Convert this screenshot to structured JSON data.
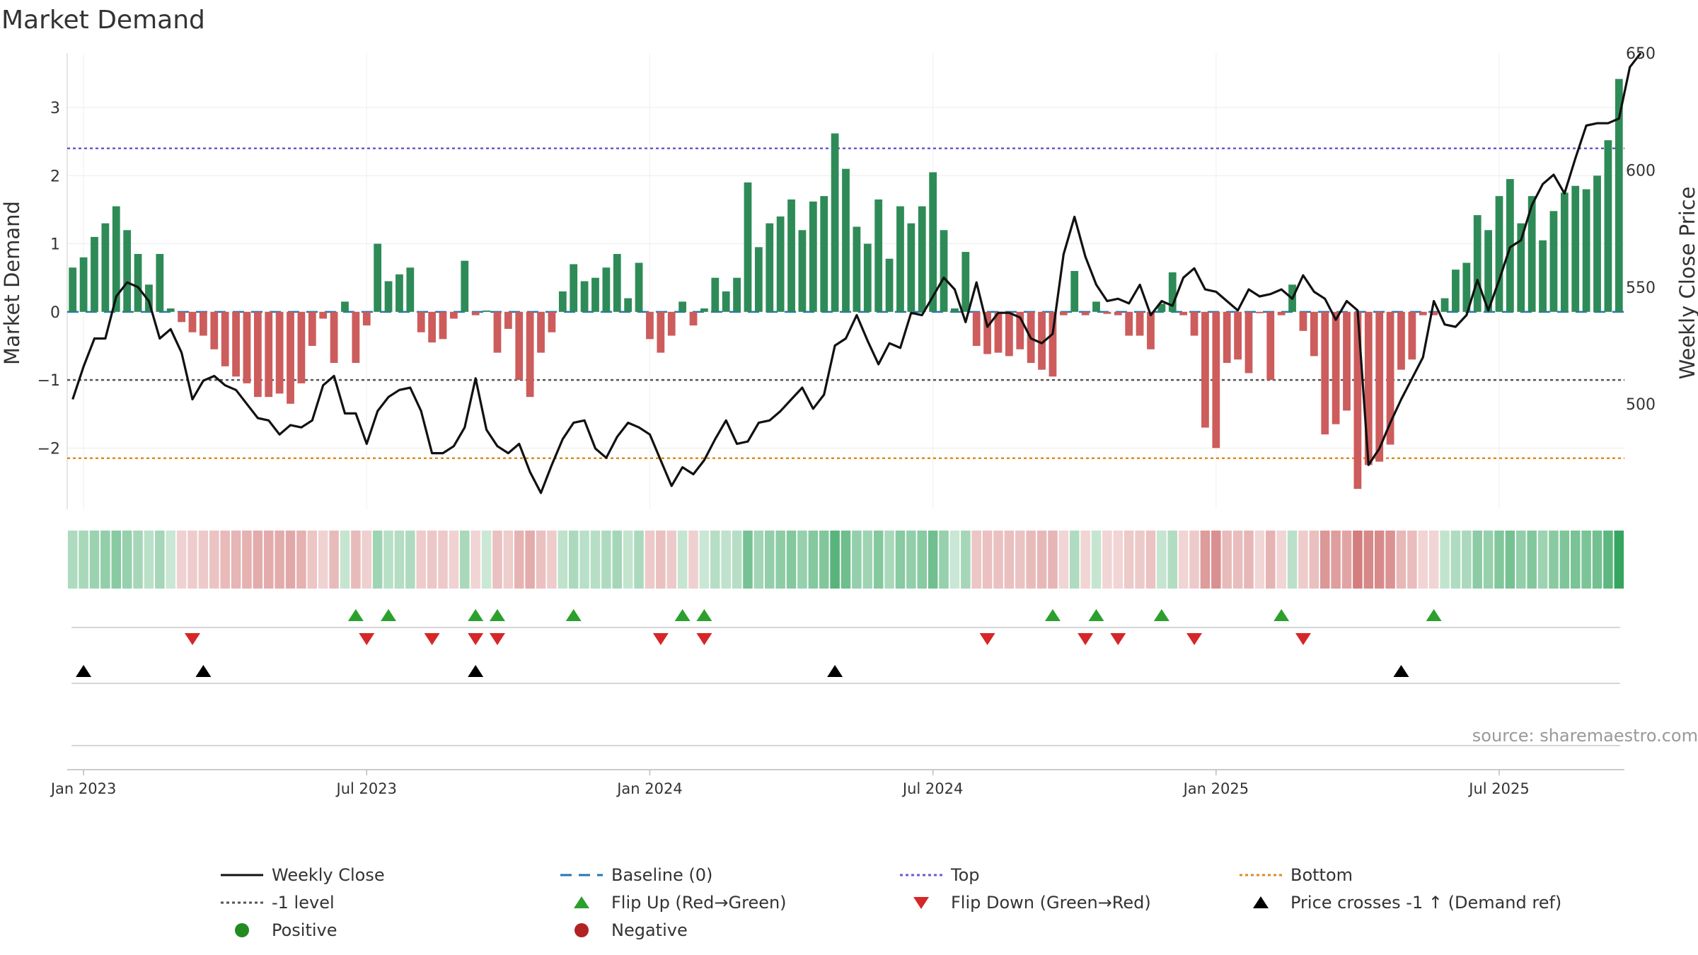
{
  "title": "Market Demand",
  "source": "source: sharemaestro.com",
  "colors": {
    "positive": "#2e8b57",
    "negative": "#cd5c5c",
    "price": "#111111",
    "baseline": "#1f77b4",
    "top": "#6a5acd",
    "bottom": "#e08a1e",
    "level": "#555555",
    "flip_up": "#2ca02c",
    "flip_down": "#d62728",
    "cross": "#000000",
    "legend_positive": "#228b22",
    "legend_negative": "#b22222",
    "heat_pos": "#2ea15a",
    "heat_neg": "#c85a5a"
  },
  "chart_data": {
    "type": "bar",
    "title": "Market Demand",
    "ylabel": "Market Demand",
    "y2label": "Weekly Close Price",
    "ylim": [
      -2.9,
      3.8
    ],
    "y2lim": [
      455,
      650
    ],
    "yticks": [
      "-2",
      "-1",
      "0",
      "1",
      "2",
      "3"
    ],
    "y2ticks": [
      "500",
      "550",
      "600",
      "650"
    ],
    "date_labels": [
      "Jan 2023",
      "Jul 2023",
      "Jan 2024",
      "Jul 2024",
      "Jan 2025",
      "Jul 2025"
    ],
    "date_label_weeks": [
      1,
      27,
      53,
      79,
      105,
      131
    ],
    "reference_lines": {
      "baseline": 0,
      "top": 2.4,
      "bottom": -2.15,
      "minus_one_level": -1
    },
    "series": [
      {
        "name": "Market Demand",
        "values": [
          0.65,
          0.8,
          1.1,
          1.3,
          1.55,
          1.2,
          0.85,
          0.4,
          0.85,
          0.05,
          -0.15,
          -0.3,
          -0.35,
          -0.55,
          -0.8,
          -0.95,
          -1.05,
          -1.25,
          -1.25,
          -1.2,
          -1.35,
          -1.05,
          -0.5,
          -0.1,
          -0.75,
          0.15,
          -0.75,
          -0.2,
          1.0,
          0.45,
          0.55,
          0.65,
          -0.3,
          -0.45,
          -0.4,
          -0.1,
          0.75,
          -0.05,
          0.02,
          -0.6,
          -0.25,
          -1.0,
          -1.25,
          -0.6,
          -0.3,
          0.3,
          0.7,
          0.45,
          0.5,
          0.65,
          0.85,
          0.2,
          0.72,
          -0.4,
          -0.6,
          -0.35,
          0.15,
          -0.2,
          0.05,
          0.5,
          0.3,
          0.5,
          1.9,
          0.95,
          1.3,
          1.4,
          1.65,
          1.2,
          1.62,
          1.7,
          2.62,
          2.1,
          1.25,
          1.0,
          1.65,
          0.78,
          1.55,
          1.3,
          1.55,
          2.05,
          1.2,
          0.05,
          0.88,
          -0.5,
          -0.62,
          -0.6,
          -0.65,
          -0.55,
          -0.75,
          -0.85,
          -0.95,
          -0.05,
          0.6,
          -0.05,
          0.15,
          -0.03,
          -0.05,
          -0.35,
          -0.35,
          -0.55,
          0.12,
          0.58,
          -0.05,
          -0.35,
          -1.7,
          -2.0,
          -0.75,
          -0.7,
          -0.9,
          -0.02,
          -1.0,
          -0.05,
          0.4,
          -0.28,
          -0.65,
          -1.8,
          -1.65,
          -1.45,
          -2.6,
          -2.25,
          -2.2,
          -1.95,
          -0.85,
          -0.7,
          -0.05,
          -0.05,
          0.2,
          0.62,
          0.72,
          1.42,
          1.2,
          1.7,
          1.95,
          1.3,
          1.7,
          1.05,
          1.48,
          1.75,
          1.85,
          1.8,
          2.0,
          2.52,
          3.42
        ]
      },
      {
        "name": "Weekly Close",
        "values": [
          502,
          516,
          528,
          528,
          546,
          552,
          550,
          544,
          528,
          532,
          522,
          502,
          510,
          512,
          508,
          506,
          500,
          494,
          493,
          487,
          491,
          490,
          493,
          508,
          512,
          496,
          496,
          483,
          497,
          503,
          506,
          507,
          497,
          479,
          479,
          482,
          490,
          511,
          489,
          482,
          479,
          483,
          471,
          462,
          474,
          485,
          492,
          493,
          481,
          477,
          486,
          492,
          490,
          487,
          476,
          465,
          473,
          470,
          476,
          485,
          493,
          483,
          484,
          492,
          493,
          497,
          502,
          507,
          498,
          504,
          525,
          528,
          538,
          527,
          517,
          526,
          524,
          539,
          538,
          546,
          554,
          549,
          535,
          552,
          533,
          539,
          539,
          537,
          528,
          526,
          530,
          564,
          580,
          563,
          551,
          544,
          545,
          543,
          551,
          538,
          544,
          542,
          554,
          558,
          549,
          548,
          544,
          540,
          549,
          546,
          547,
          549,
          545,
          555,
          548,
          545,
          536,
          544,
          540,
          474,
          481,
          492,
          502,
          511,
          520,
          544,
          534,
          533,
          538,
          553,
          540,
          553,
          567,
          570,
          585,
          594,
          598,
          590,
          605,
          619,
          620,
          620,
          622,
          644,
          650
        ]
      }
    ],
    "flip_up_weeks": [
      26,
      29,
      37,
      39,
      46,
      56,
      58,
      90,
      94,
      100,
      111,
      125
    ],
    "flip_down_weeks": [
      11,
      27,
      33,
      37,
      39,
      54,
      58,
      84,
      93,
      96,
      103,
      113
    ],
    "price_cross_weeks": [
      1,
      12,
      37,
      70,
      122
    ],
    "legend": [
      "Weekly Close",
      "Baseline (0)",
      "Top",
      "Bottom",
      "-1 level",
      "Flip Up (Red→Green)",
      "Flip Down (Green→Red)",
      "Price crosses -1 ↑ (Demand ref)",
      "Positive",
      "Negative"
    ]
  }
}
